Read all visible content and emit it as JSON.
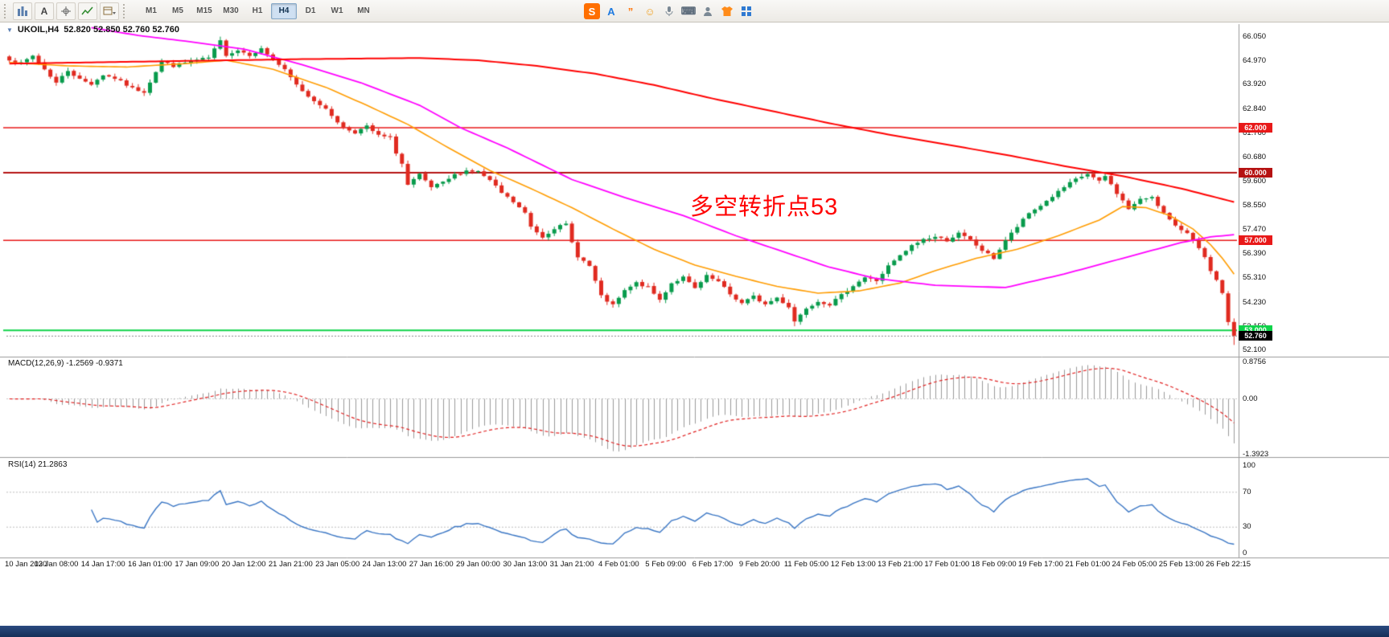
{
  "window": {
    "collapse_glyph": "▼"
  },
  "toolbar": {
    "left_icons": [
      {
        "name": "chart-bars-icon"
      },
      {
        "name": "text-tool-icon",
        "glyph": "A"
      },
      {
        "name": "crosshair-icon"
      },
      {
        "name": "indicators-icon"
      },
      {
        "name": "templates-dropdown-icon"
      }
    ],
    "timeframes": [
      "M1",
      "M5",
      "M15",
      "M30",
      "H1",
      "H4",
      "D1",
      "W1",
      "MN"
    ],
    "active_timeframe": "H4",
    "tray_icons": [
      {
        "name": "sogou-logo-icon",
        "glyph": "S",
        "bg": "#ff6f00",
        "fg": "#ffffff"
      },
      {
        "name": "input-mode-icon",
        "glyph": "A",
        "fg": "#1e7ae0"
      },
      {
        "name": "punctuation-icon",
        "glyph": "”",
        "fg": "#ff6f00"
      },
      {
        "name": "emoji-icon",
        "glyph": "☺",
        "fg": "#f0a020"
      },
      {
        "name": "mic-icon"
      },
      {
        "name": "keyboard-icon",
        "glyph": "⌨",
        "fg": "#5f6e7d"
      },
      {
        "name": "user-icon"
      },
      {
        "name": "skin-icon"
      },
      {
        "name": "apps-grid-icon"
      }
    ]
  },
  "annotation": {
    "text": "多空转折点53",
    "color": "#ff0000"
  },
  "chart_data": {
    "type": "candlestick",
    "symbol_period": "UKOIL,H4",
    "ohlc_text": "52.820 52.850 52.760 52.760",
    "open": 52.82,
    "high": 52.85,
    "low": 52.76,
    "close": 52.76,
    "price_axis": {
      "ticks": [
        "66.050",
        "64.970",
        "63.920",
        "62.840",
        "61.760",
        "60.680",
        "59.600",
        "58.550",
        "57.470",
        "56.390",
        "55.310",
        "54.230",
        "53.150",
        "52.100"
      ],
      "top_price": 66.5,
      "bottom_price": 51.9
    },
    "time_axis": {
      "labels": [
        "10 Jan 2020",
        "13 Jan 08:00",
        "14 Jan 17:00",
        "16 Jan 01:00",
        "17 Jan 09:00",
        "20 Jan 12:00",
        "21 Jan 21:00",
        "23 Jan 05:00",
        "24 Jan 13:00",
        "27 Jan 16:00",
        "29 Jan 00:00",
        "30 Jan 13:00",
        "31 Jan 21:00",
        "4 Feb 01:00",
        "5 Feb 09:00",
        "6 Feb 17:00",
        "9 Feb 20:00",
        "11 Feb 05:00",
        "12 Feb 13:00",
        "13 Feb 21:00",
        "17 Feb 01:00",
        "18 Feb 09:00",
        "19 Feb 17:00",
        "21 Feb 01:00",
        "24 Feb 05:00",
        "25 Feb 13:00",
        "26 Feb 22:15"
      ]
    },
    "price_lines": [
      {
        "label": "62.000",
        "price": 62.0,
        "color": "#e81919",
        "width": 1.5
      },
      {
        "label": "60.000",
        "price": 60.0,
        "color": "#b51212",
        "width": 2
      },
      {
        "label": "57.000",
        "price": 57.0,
        "color": "#e81919",
        "width": 1.5
      },
      {
        "label": "53.000",
        "price": 53.0,
        "color": "#0fd34a",
        "width": 2
      }
    ],
    "current_price": {
      "label": "52.760",
      "price": 52.76,
      "bg": "#000000"
    },
    "candles": {
      "count": 210,
      "up_color": "#089b4c",
      "down_color": "#e02a20",
      "close_path_waypoints": [
        [
          0,
          65.05
        ],
        [
          2,
          64.85
        ],
        [
          4,
          65.2
        ],
        [
          6,
          64.6
        ],
        [
          8,
          64.0
        ],
        [
          10,
          64.55
        ],
        [
          12,
          64.15
        ],
        [
          14,
          63.95
        ],
        [
          16,
          64.35
        ],
        [
          18,
          64.2
        ],
        [
          21,
          63.75
        ],
        [
          23,
          63.6
        ],
        [
          26,
          64.95
        ],
        [
          28,
          64.75
        ],
        [
          31,
          64.95
        ],
        [
          34,
          65.1
        ],
        [
          36,
          65.85
        ],
        [
          37,
          65.25
        ],
        [
          39,
          65.45
        ],
        [
          41,
          65.25
        ],
        [
          43,
          65.5
        ],
        [
          45,
          65.05
        ],
        [
          47,
          64.55
        ],
        [
          49,
          63.9
        ],
        [
          51,
          63.4
        ],
        [
          53,
          63.05
        ],
        [
          55,
          62.55
        ],
        [
          57,
          62.0
        ],
        [
          59,
          61.8
        ],
        [
          61,
          62.05
        ],
        [
          63,
          61.65
        ],
        [
          65,
          61.55
        ],
        [
          66,
          60.9
        ],
        [
          67,
          60.4
        ],
        [
          68,
          59.45
        ],
        [
          70,
          59.9
        ],
        [
          72,
          59.35
        ],
        [
          74,
          59.55
        ],
        [
          76,
          59.9
        ],
        [
          78,
          60.1
        ],
        [
          80,
          60.05
        ],
        [
          82,
          59.65
        ],
        [
          84,
          59.1
        ],
        [
          86,
          58.7
        ],
        [
          88,
          58.2
        ],
        [
          89,
          57.6
        ],
        [
          91,
          57.15
        ],
        [
          93,
          57.55
        ],
        [
          95,
          57.7
        ],
        [
          96,
          56.9
        ],
        [
          97,
          56.3
        ],
        [
          99,
          55.85
        ],
        [
          101,
          54.5
        ],
        [
          103,
          54.1
        ],
        [
          105,
          54.75
        ],
        [
          107,
          55.1
        ],
        [
          109,
          54.9
        ],
        [
          111,
          54.35
        ],
        [
          113,
          55.1
        ],
        [
          115,
          55.35
        ],
        [
          117,
          54.85
        ],
        [
          119,
          55.4
        ],
        [
          121,
          55.15
        ],
        [
          123,
          54.6
        ],
        [
          125,
          54.2
        ],
        [
          127,
          54.5
        ],
        [
          129,
          54.15
        ],
        [
          131,
          54.45
        ],
        [
          133,
          54.05
        ],
        [
          134,
          53.4
        ],
        [
          136,
          54.0
        ],
        [
          138,
          54.3
        ],
        [
          140,
          54.15
        ],
        [
          142,
          54.55
        ],
        [
          144,
          55.0
        ],
        [
          146,
          55.35
        ],
        [
          148,
          55.2
        ],
        [
          150,
          55.85
        ],
        [
          152,
          56.3
        ],
        [
          154,
          56.75
        ],
        [
          156,
          57.05
        ],
        [
          158,
          57.15
        ],
        [
          160,
          57.0
        ],
        [
          162,
          57.3
        ],
        [
          164,
          57.0
        ],
        [
          166,
          56.55
        ],
        [
          168,
          56.2
        ],
        [
          170,
          57.0
        ],
        [
          172,
          57.6
        ],
        [
          174,
          58.2
        ],
        [
          176,
          58.55
        ],
        [
          178,
          58.95
        ],
        [
          180,
          59.35
        ],
        [
          182,
          59.7
        ],
        [
          184,
          59.95
        ],
        [
          186,
          59.6
        ],
        [
          187,
          59.85
        ],
        [
          189,
          59.1
        ],
        [
          191,
          58.4
        ],
        [
          193,
          58.8
        ],
        [
          195,
          58.95
        ],
        [
          197,
          58.2
        ],
        [
          199,
          57.6
        ],
        [
          201,
          57.35
        ],
        [
          202,
          57.05
        ],
        [
          204,
          56.2
        ],
        [
          205,
          55.6
        ],
        [
          206,
          55.2
        ],
        [
          207,
          54.6
        ],
        [
          208,
          53.4
        ],
        [
          209,
          52.76
        ]
      ],
      "special": {
        "spike_high_index": 36,
        "spike_high": 66.05,
        "dip_low_index": 134,
        "dip_low": 53.18,
        "last_low": 52.35
      }
    },
    "moving_averages": [
      {
        "name": "ma-fast-orange",
        "color": "#ff9c00",
        "width": 1.6,
        "waypoints": [
          [
            0,
            64.9
          ],
          [
            10,
            64.75
          ],
          [
            20,
            64.7
          ],
          [
            30,
            64.85
          ],
          [
            37,
            65.0
          ],
          [
            45,
            64.6
          ],
          [
            54,
            63.8
          ],
          [
            61,
            63.0
          ],
          [
            68,
            62.15
          ],
          [
            75,
            61.1
          ],
          [
            82,
            60.1
          ],
          [
            89,
            59.3
          ],
          [
            96,
            58.45
          ],
          [
            103,
            57.5
          ],
          [
            110,
            56.6
          ],
          [
            117,
            55.9
          ],
          [
            124,
            55.4
          ],
          [
            131,
            54.95
          ],
          [
            138,
            54.65
          ],
          [
            145,
            54.75
          ],
          [
            152,
            55.1
          ],
          [
            158,
            55.65
          ],
          [
            165,
            56.2
          ],
          [
            172,
            56.6
          ],
          [
            179,
            57.2
          ],
          [
            186,
            57.9
          ],
          [
            190,
            58.5
          ],
          [
            194,
            58.45
          ],
          [
            198,
            58.1
          ],
          [
            202,
            57.5
          ],
          [
            205,
            56.8
          ],
          [
            207,
            56.2
          ],
          [
            209,
            55.5
          ]
        ]
      },
      {
        "name": "ma-mid-magenta",
        "color": "#ff00ff",
        "width": 1.8,
        "waypoints": [
          [
            14,
            66.45
          ],
          [
            22,
            66.1
          ],
          [
            30,
            65.85
          ],
          [
            40,
            65.5
          ],
          [
            50,
            64.8
          ],
          [
            60,
            64.0
          ],
          [
            70,
            63.0
          ],
          [
            77,
            62.0
          ],
          [
            85,
            61.1
          ],
          [
            96,
            59.7
          ],
          [
            105,
            58.9
          ],
          [
            115,
            58.1
          ],
          [
            124,
            57.2
          ],
          [
            132,
            56.5
          ],
          [
            140,
            55.8
          ],
          [
            148,
            55.3
          ],
          [
            158,
            55.0
          ],
          [
            170,
            54.9
          ],
          [
            180,
            55.5
          ],
          [
            190,
            56.2
          ],
          [
            200,
            56.9
          ],
          [
            205,
            57.15
          ],
          [
            209,
            57.25
          ]
        ]
      },
      {
        "name": "ma-slow-red",
        "color": "#ff0000",
        "width": 2,
        "waypoints": [
          [
            0,
            64.85
          ],
          [
            25,
            64.95
          ],
          [
            50,
            65.05
          ],
          [
            70,
            65.1
          ],
          [
            80,
            65.0
          ],
          [
            90,
            64.75
          ],
          [
            100,
            64.4
          ],
          [
            110,
            63.9
          ],
          [
            120,
            63.3
          ],
          [
            130,
            62.75
          ],
          [
            140,
            62.2
          ],
          [
            150,
            61.7
          ],
          [
            160,
            61.25
          ],
          [
            170,
            60.8
          ],
          [
            180,
            60.3
          ],
          [
            190,
            59.85
          ],
          [
            200,
            59.3
          ],
          [
            209,
            58.7
          ]
        ]
      }
    ],
    "indicators": {
      "macd": {
        "label": "MACD(12,26,9) -1.2569 -0.9371",
        "fast": 12,
        "slow": 26,
        "signal": 9,
        "value": -1.2569,
        "signal_value": -0.9371,
        "scale_labels": {
          "max": "0.8756",
          "zero": "0.00",
          "min": "-1.3923"
        },
        "histogram_color": "#9a9a9a",
        "signal_color": "#e02020"
      },
      "rsi": {
        "label": "RSI(14) 21.2863",
        "period": 14,
        "value": 21.2863,
        "levels": [
          70,
          30
        ],
        "scale_labels": [
          "100",
          "70",
          "30",
          "0"
        ],
        "line_color": "#3a76c4"
      }
    }
  }
}
